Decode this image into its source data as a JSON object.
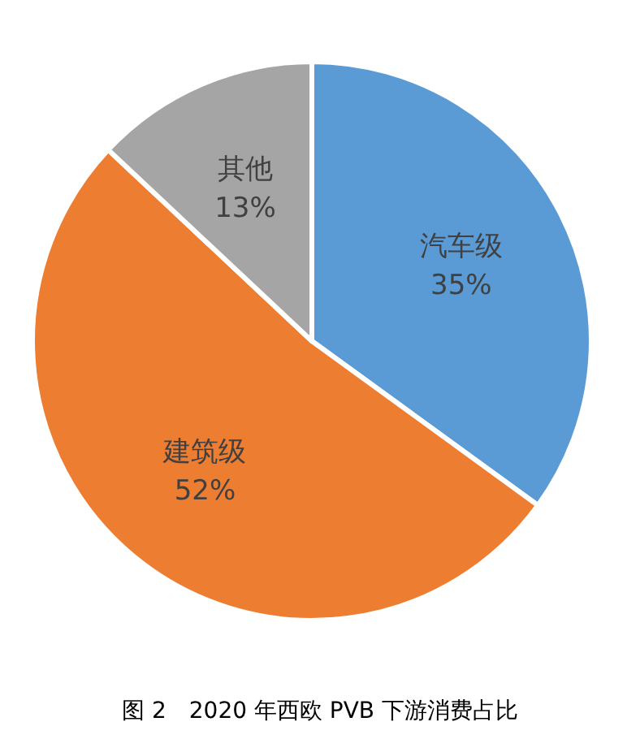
{
  "chart_data": {
    "type": "pie",
    "title": "图 2　2020 年西欧 PVB 下游消费占比",
    "categories": [
      "汽车级",
      "建筑级",
      "其他"
    ],
    "values": [
      35,
      52,
      13
    ],
    "colors": [
      "#5b9bd5",
      "#ed7d31",
      "#a5a5a5"
    ],
    "value_labels": [
      "35%",
      "52%",
      "13%"
    ]
  }
}
